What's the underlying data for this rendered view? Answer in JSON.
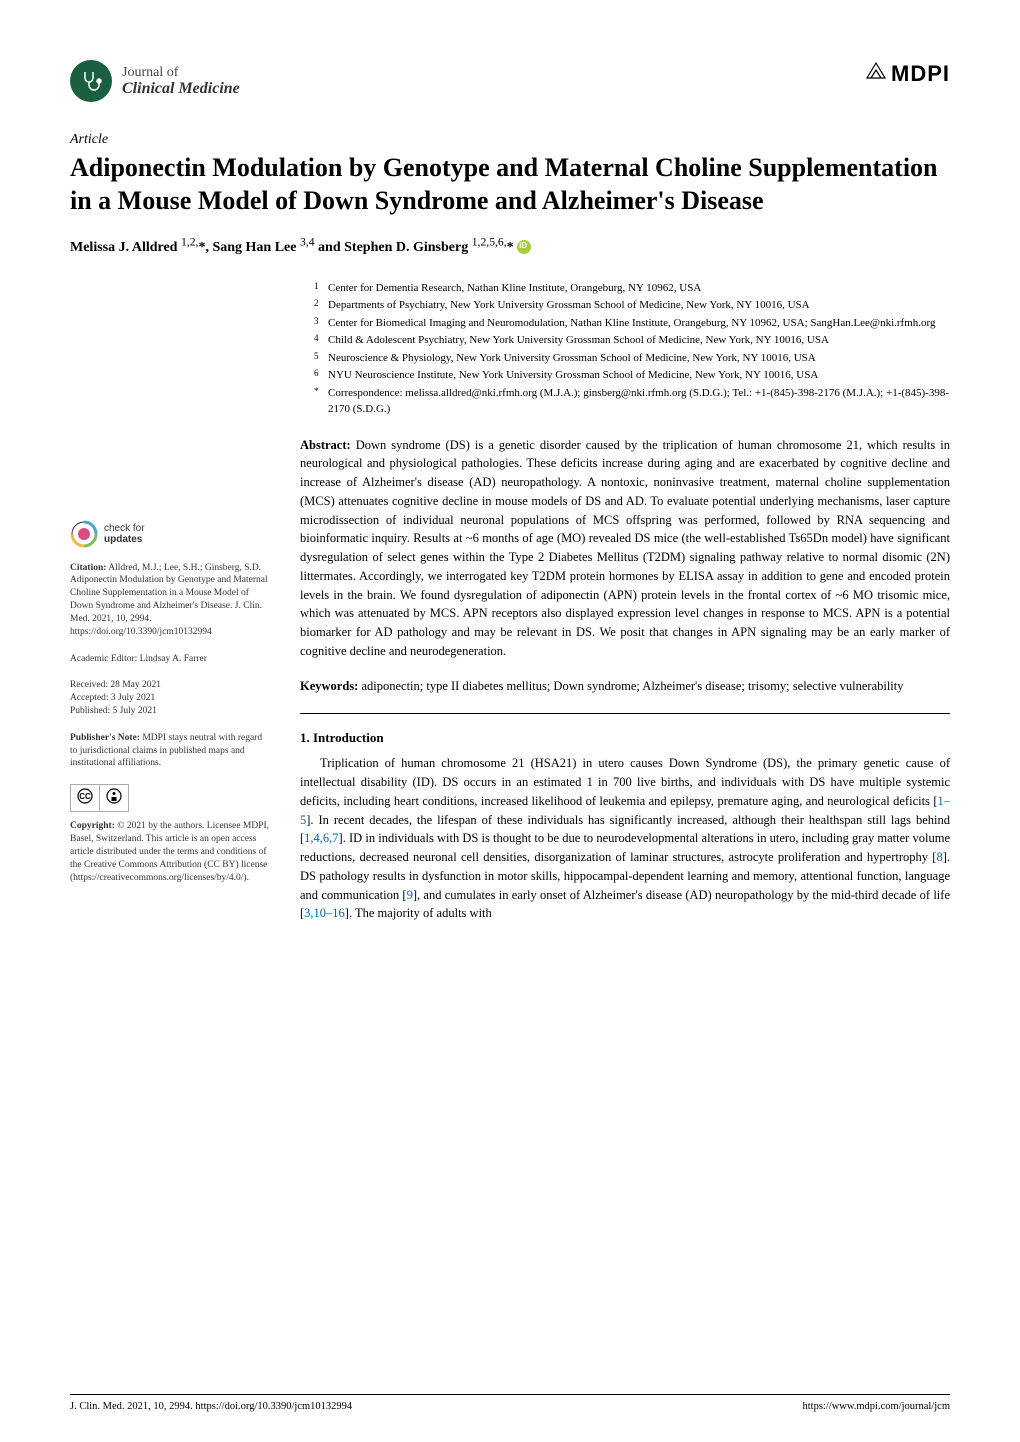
{
  "journal": {
    "top": "Journal of",
    "bottom": "Clinical Medicine"
  },
  "publisher": "MDPI",
  "article_type": "Article",
  "title": "Adiponectin Modulation by Genotype and Maternal Choline Supplementation in a Mouse Model of Down Syndrome and Alzheimer's Disease",
  "authors_html": "Melissa J. Alldred <sup>1,2,</sup>*, Sang Han Lee <sup>3,4</sup> and Stephen D. Ginsberg <sup>1,2,5,6,</sup>*",
  "affiliations": [
    {
      "n": "1",
      "text": "Center for Dementia Research, Nathan Kline Institute, Orangeburg, NY 10962, USA"
    },
    {
      "n": "2",
      "text": "Departments of Psychiatry, New York University Grossman School of Medicine, New York, NY 10016, USA"
    },
    {
      "n": "3",
      "text": "Center for Biomedical Imaging and Neuromodulation, Nathan Kline Institute, Orangeburg, NY 10962, USA; SangHan.Lee@nki.rfmh.org"
    },
    {
      "n": "4",
      "text": "Child & Adolescent Psychiatry, New York University Grossman School of Medicine, New York, NY 10016, USA"
    },
    {
      "n": "5",
      "text": "Neuroscience & Physiology, New York University Grossman School of Medicine, New York, NY 10016, USA"
    },
    {
      "n": "6",
      "text": "NYU Neuroscience Institute, New York University Grossman School of Medicine, New York, NY 10016, USA"
    },
    {
      "n": "*",
      "text": "Correspondence: melissa.alldred@nki.rfmh.org (M.J.A.); ginsberg@nki.rfmh.org (S.D.G.); Tel.: +1-(845)-398-2176 (M.J.A.); +1-(845)-398-2170 (S.D.G.)"
    }
  ],
  "abstract_label": "Abstract:",
  "abstract": " Down syndrome (DS) is a genetic disorder caused by the triplication of human chromosome 21, which results in neurological and physiological pathologies. These deficits increase during aging and are exacerbated by cognitive decline and increase of Alzheimer's disease (AD) neuropathology. A nontoxic, noninvasive treatment, maternal choline supplementation (MCS) attenuates cognitive decline in mouse models of DS and AD. To evaluate potential underlying mechanisms, laser capture microdissection of individual neuronal populations of MCS offspring was performed, followed by RNA sequencing and bioinformatic inquiry. Results at ~6 months of age (MO) revealed DS mice (the well-established Ts65Dn model) have significant dysregulation of select genes within the Type 2 Diabetes Mellitus (T2DM) signaling pathway relative to normal disomic (2N) littermates. Accordingly, we interrogated key T2DM protein hormones by ELISA assay in addition to gene and encoded protein levels in the brain. We found dysregulation of adiponectin (APN) protein levels in the frontal cortex of ~6 MO trisomic mice, which was attenuated by MCS. APN receptors also displayed expression level changes in response to MCS. APN is a potential biomarker for AD pathology and may be relevant in DS. We posit that changes in APN signaling may be an early marker of cognitive decline and neurodegeneration.",
  "keywords_label": "Keywords:",
  "keywords": " adiponectin; type II diabetes mellitus; Down syndrome; Alzheimer's disease; trisomy; selective vulnerability",
  "section1_heading": "1. Introduction",
  "section1_body": "Triplication of human chromosome 21 (HSA21) in utero causes Down Syndrome (DS), the primary genetic cause of intellectual disability (ID). DS occurs in an estimated 1 in 700 live births, and individuals with DS have multiple systemic deficits, including heart conditions, increased likelihood of leukemia and epilepsy, premature aging, and neurological deficits [1–5]. In recent decades, the lifespan of these individuals has significantly increased, although their healthspan still lags behind [1,4,6,7]. ID in individuals with DS is thought to be due to neurodevelopmental alterations in utero, including gray matter volume reductions, decreased neuronal cell densities, disorganization of laminar structures, astrocyte proliferation and hypertrophy [8]. DS pathology results in dysfunction in motor skills, hippocampal-dependent learning and memory, attentional function, language and communication [9], and cumulates in early onset of Alzheimer's disease (AD) neuropathology by the mid-third decade of life [3,10–16]. The majority of adults with",
  "sidebar": {
    "check_updates_top": "check for",
    "check_updates_bottom": "updates",
    "citation_label": "Citation:",
    "citation": " Alldred, M.J.; Lee, S.H.; Ginsberg, S.D. Adiponectin Modulation by Genotype and Maternal Choline Supplementation in a Mouse Model of Down Syndrome and Alzheimer's Disease. J. Clin. Med. 2021, 10, 2994. https://doi.org/10.3390/jcm10132994",
    "editor_label": "Academic Editor: ",
    "editor": "Lindsay A. Farrer",
    "received_label": "Received: ",
    "received": "28 May 2021",
    "accepted_label": "Accepted: ",
    "accepted": "3 July 2021",
    "published_label": "Published: ",
    "published": "5 July 2021",
    "pubnote_label": "Publisher's Note:",
    "pubnote": " MDPI stays neutral with regard to jurisdictional claims in published maps and institutional affiliations.",
    "copyright_label": "Copyright:",
    "copyright": " © 2021 by the authors. Licensee MDPI, Basel, Switzerland. This article is an open access article distributed under the terms and conditions of the Creative Commons Attribution (CC BY) license (https://creativecommons.org/licenses/by/4.0/)."
  },
  "footer": {
    "left": "J. Clin. Med. 2021, 10, 2994. https://doi.org/10.3390/jcm10132994",
    "right": "https://www.mdpi.com/journal/jcm"
  },
  "colors": {
    "logo_bg": "#1a5f3f",
    "link": "#0066aa",
    "orcid": "#a6ce39"
  }
}
